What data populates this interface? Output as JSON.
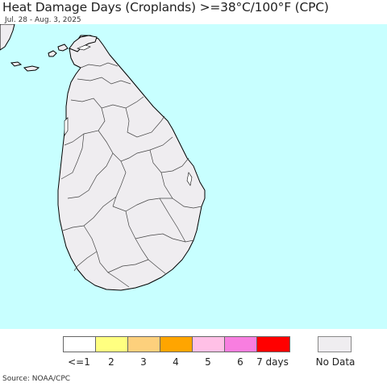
{
  "header": {
    "title": "Heat Damage Days (Croplands) >=38°C/100°F (CPC)",
    "subtitle": "Jul. 28 - Aug. 3, 2025"
  },
  "map": {
    "ocean_color": "#c8ffff",
    "land_color": "#efedf0",
    "border_color": "#000000",
    "subdivision_color": "#444444",
    "inland_water_color": "#ffffff"
  },
  "legend": {
    "items": [
      {
        "label": "<=1",
        "color": "#ffffff"
      },
      {
        "label": "2",
        "color": "#ffff80"
      },
      {
        "label": "3",
        "color": "#fdd07c"
      },
      {
        "label": "4",
        "color": "#ffa500"
      },
      {
        "label": "5",
        "color": "#ffc0e6"
      },
      {
        "label": "6",
        "color": "#f87ee0"
      },
      {
        "label": "7 days",
        "color": "#ff0000"
      }
    ],
    "no_data": {
      "label": "No Data",
      "color": "#efedf0"
    }
  },
  "footer": {
    "source": "Source: NOAA/CPC"
  }
}
